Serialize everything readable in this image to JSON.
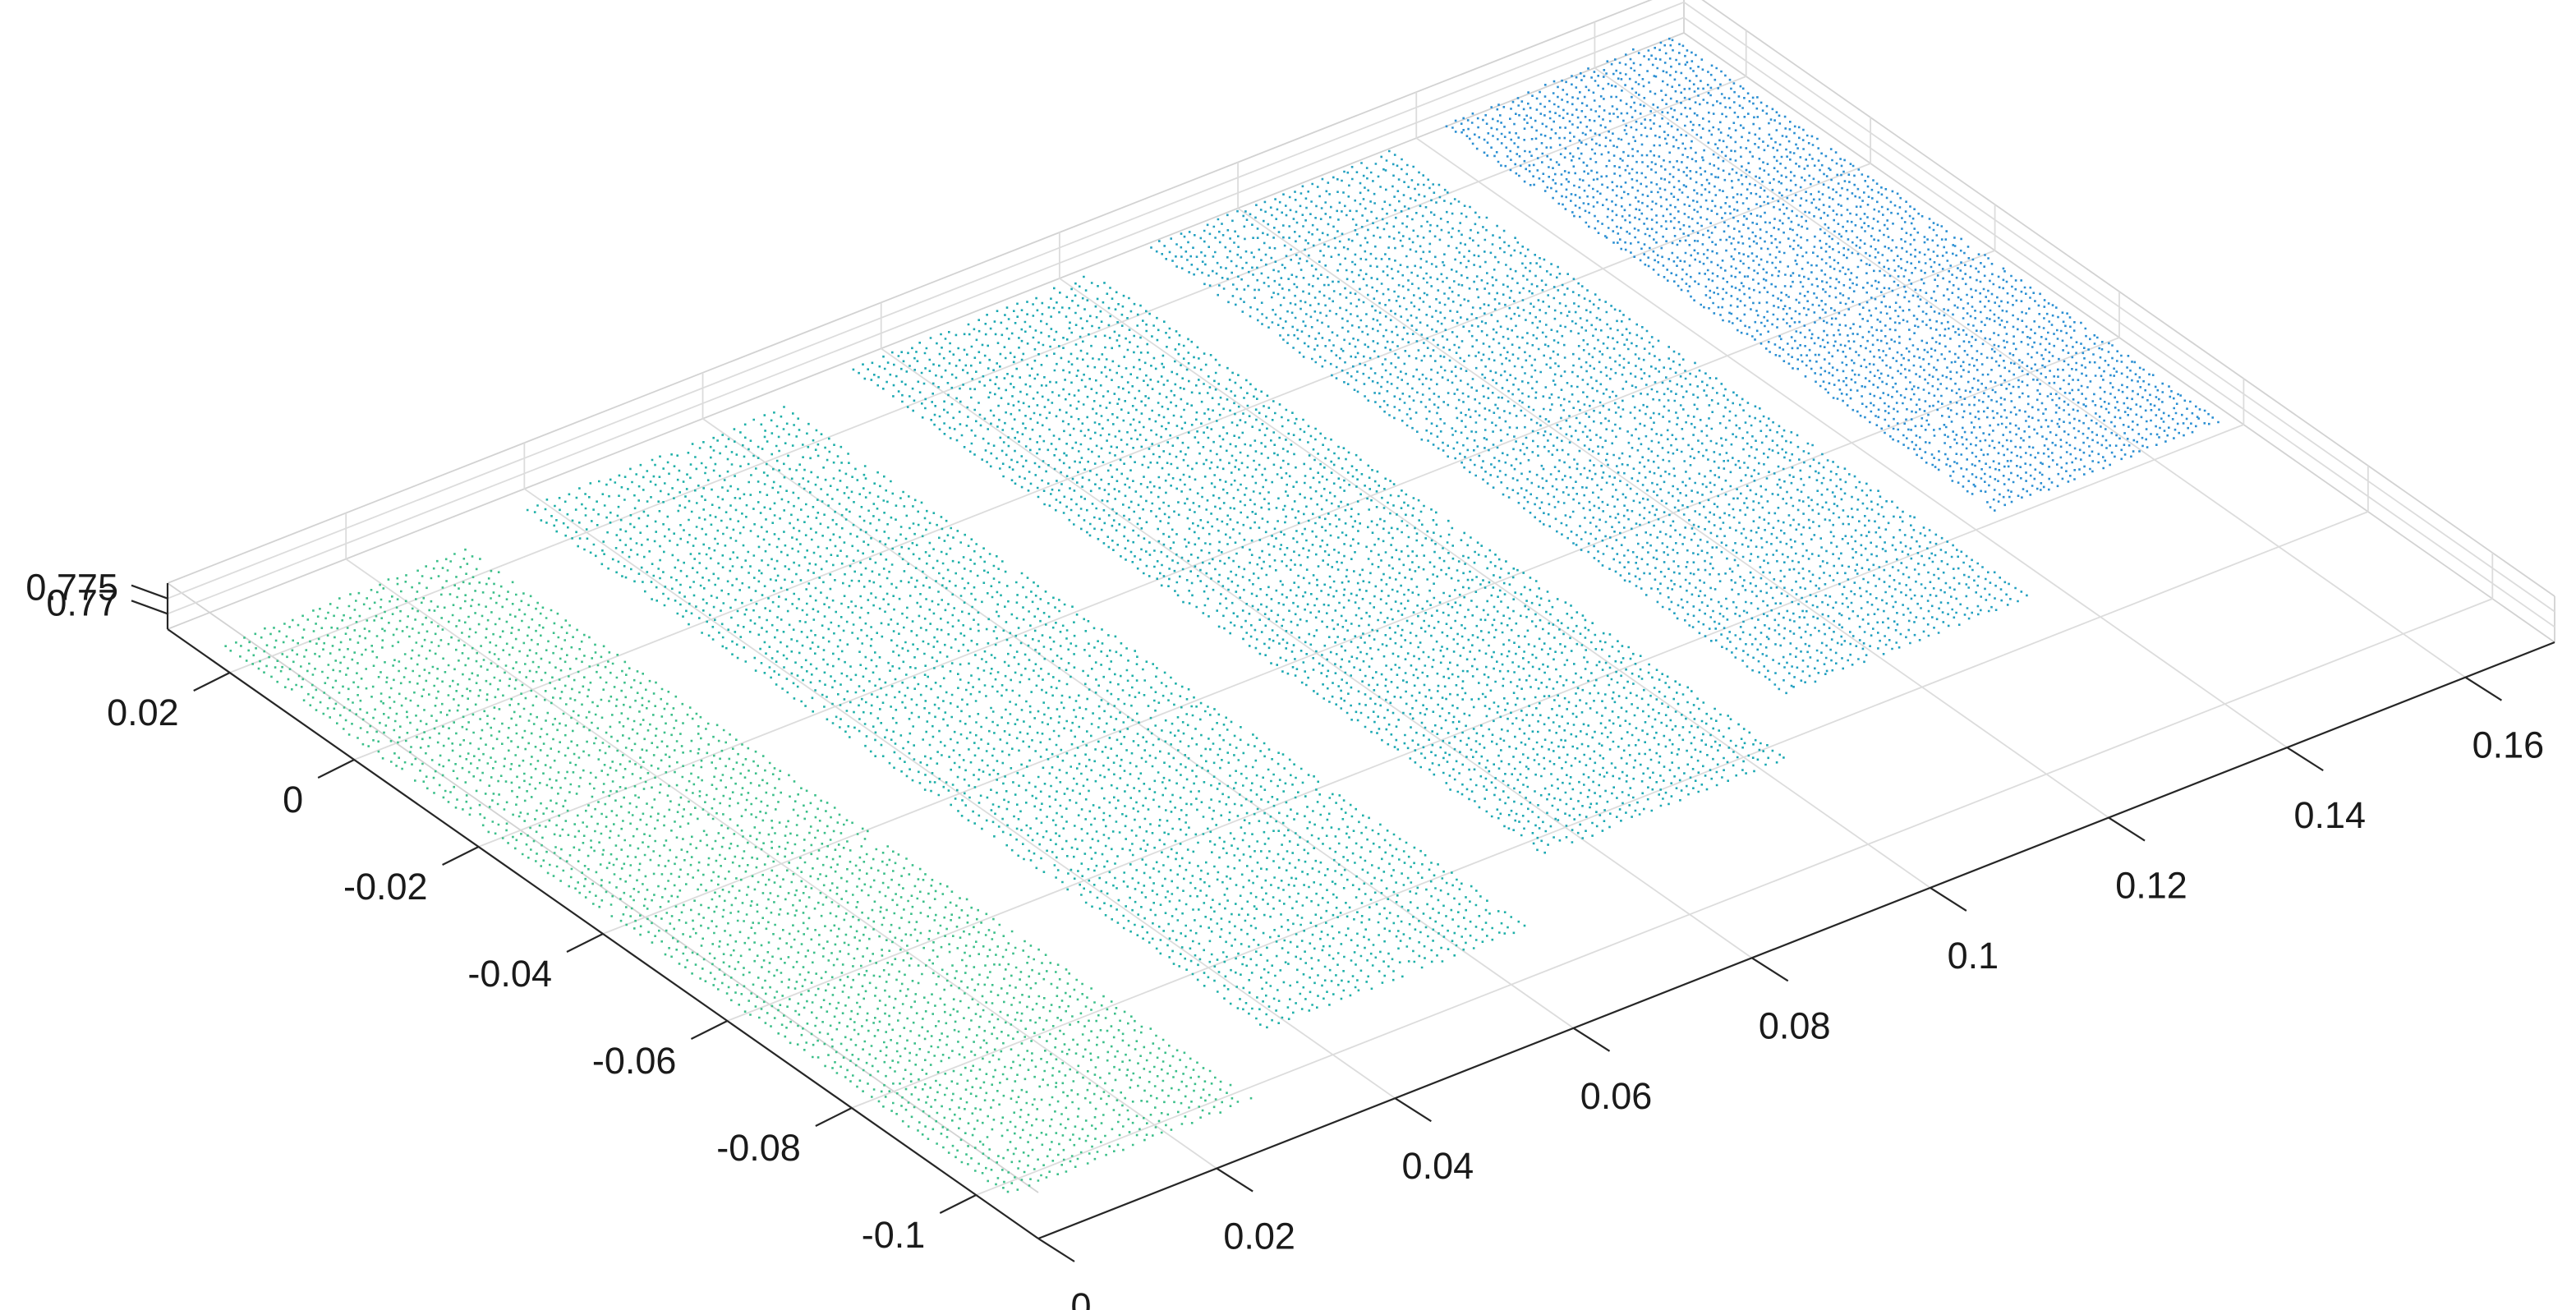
{
  "chart_data": {
    "type": "scatter3d",
    "title": "",
    "xlabel": "",
    "ylabel": "",
    "zlabel": "",
    "grid": true,
    "colormap": "parula",
    "xlim": [
      0,
      0.17
    ],
    "ylim": [
      -0.11,
      0.03
    ],
    "zlim": [
      0.765,
      0.78
    ],
    "x_ticks": [
      {
        "value": 0,
        "label": "0"
      },
      {
        "value": 0.02,
        "label": "0.02"
      },
      {
        "value": 0.04,
        "label": "0.04"
      },
      {
        "value": 0.06,
        "label": "0.06"
      },
      {
        "value": 0.08,
        "label": "0.08"
      },
      {
        "value": 0.1,
        "label": "0.1"
      },
      {
        "value": 0.12,
        "label": "0.12"
      },
      {
        "value": 0.14,
        "label": "0.14"
      },
      {
        "value": 0.16,
        "label": "0.16"
      }
    ],
    "y_ticks": [
      {
        "value": 0.02,
        "label": "0.02"
      },
      {
        "value": 0,
        "label": "0"
      },
      {
        "value": -0.02,
        "label": "-0.02"
      },
      {
        "value": -0.04,
        "label": "-0.04"
      },
      {
        "value": -0.06,
        "label": "-0.06"
      },
      {
        "value": -0.08,
        "label": "-0.08"
      },
      {
        "value": -0.1,
        "label": "-0.1"
      }
    ],
    "z_ticks": [
      {
        "value": 0.775,
        "label": "0.775"
      },
      {
        "value": 0.77,
        "label": "0.77"
      }
    ],
    "series": [
      {
        "x_range": [
          0.0,
          0.028
        ],
        "y_range": [
          -0.105,
          0.022
        ],
        "z_mean": 0.7725,
        "color": "#3cbf8a"
      },
      {
        "x_range": [
          0.036,
          0.066
        ],
        "y_range": [
          -0.095,
          0.025
        ],
        "z_mean": 0.7712,
        "color": "#1fb0a8"
      },
      {
        "x_range": [
          0.074,
          0.102
        ],
        "y_range": [
          -0.085,
          0.027
        ],
        "z_mean": 0.7708,
        "color": "#1ba8b2"
      },
      {
        "x_range": [
          0.108,
          0.136
        ],
        "y_range": [
          -0.075,
          0.028
        ],
        "z_mean": 0.7702,
        "color": "#22a0c0"
      },
      {
        "x_range": [
          0.142,
          0.168
        ],
        "y_range": [
          -0.06,
          0.029
        ],
        "z_mean": 0.7695,
        "color": "#2b8fd2"
      }
    ]
  }
}
